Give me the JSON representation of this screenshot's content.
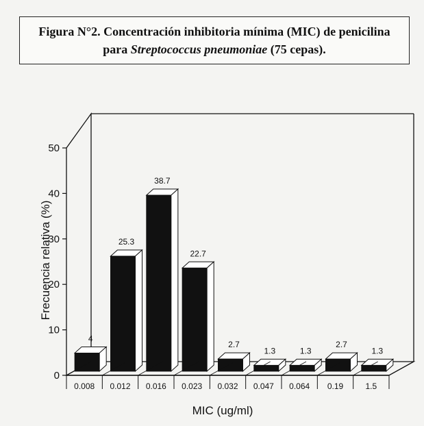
{
  "caption": {
    "prefix": "Figura N°2.",
    "line1": "Concentración inhibitoria mínima (MIC) de penicilina",
    "line2_pre": "para",
    "line2_italic": "Streptococcus pneumoniae",
    "line2_post": "(75 cepas)."
  },
  "chart_data": {
    "type": "bar",
    "categories": [
      "0.008",
      "0.012",
      "0.016",
      "0.023",
      "0.032",
      "0.047",
      "0.064",
      "0.19",
      "1.5"
    ],
    "values": [
      4,
      25.3,
      38.7,
      22.7,
      2.7,
      1.3,
      1.3,
      2.7,
      1.3
    ],
    "data_labels": [
      "4",
      "25.3",
      "38.7",
      "22.7",
      "2.7",
      "1.3",
      "1.3",
      "2.7",
      "1.3"
    ],
    "xlabel": "MIC (ug/ml)",
    "ylabel": "Frecuencia relativa (%)",
    "ylim": [
      0,
      50
    ],
    "yticks": [
      "0",
      "10",
      "20",
      "30",
      "40",
      "50"
    ],
    "style": "3d-bar",
    "bar_color": "#111111",
    "grid": false
  }
}
